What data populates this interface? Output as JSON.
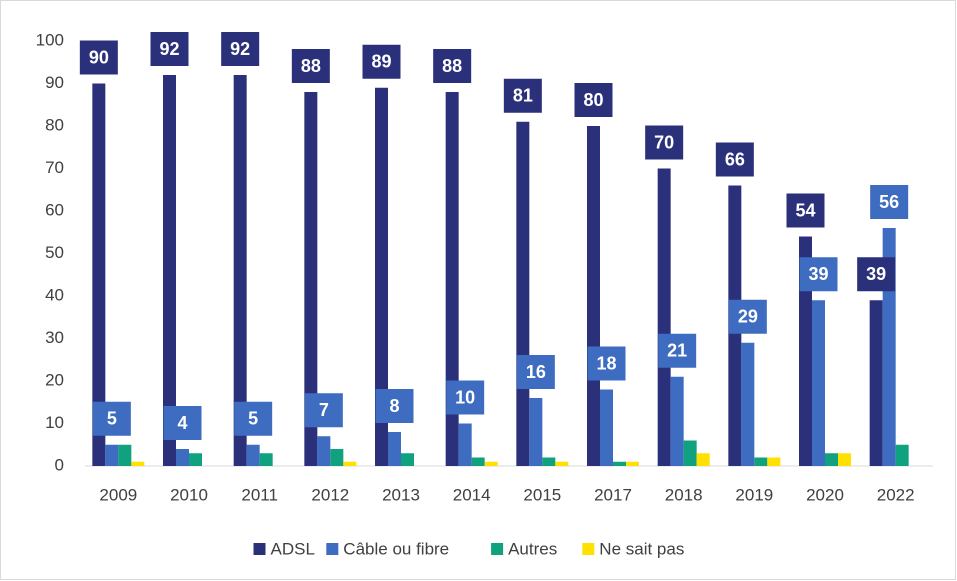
{
  "chart_data": {
    "type": "bar",
    "categories": [
      "2009",
      "2010",
      "2011",
      "2012",
      "2013",
      "2014",
      "2015",
      "2017",
      "2018",
      "2019",
      "2020",
      "2022"
    ],
    "series": [
      {
        "name": "ADSL",
        "color": "#2b307a",
        "show_labels": true,
        "values": [
          90,
          92,
          92,
          88,
          89,
          88,
          81,
          80,
          70,
          66,
          54,
          39
        ]
      },
      {
        "name": "Câble ou fibre",
        "color": "#3d6cc0",
        "show_labels": true,
        "values": [
          5,
          4,
          5,
          7,
          8,
          10,
          16,
          18,
          21,
          29,
          39,
          56
        ]
      },
      {
        "name": "Autres",
        "color": "#10a27e",
        "show_labels": false,
        "values": [
          5,
          3,
          3,
          4,
          3,
          2,
          2,
          1,
          6,
          2,
          3,
          5
        ]
      },
      {
        "name": "Ne sait pas",
        "color": "#ffe000",
        "show_labels": false,
        "values": [
          1,
          0,
          0,
          1,
          0,
          1,
          1,
          1,
          3,
          2,
          3,
          0
        ]
      }
    ],
    "ylim": [
      0,
      100
    ],
    "yticks": [
      0,
      10,
      20,
      30,
      40,
      50,
      60,
      70,
      80,
      90,
      100
    ],
    "grid": false,
    "legend": "bottom"
  }
}
